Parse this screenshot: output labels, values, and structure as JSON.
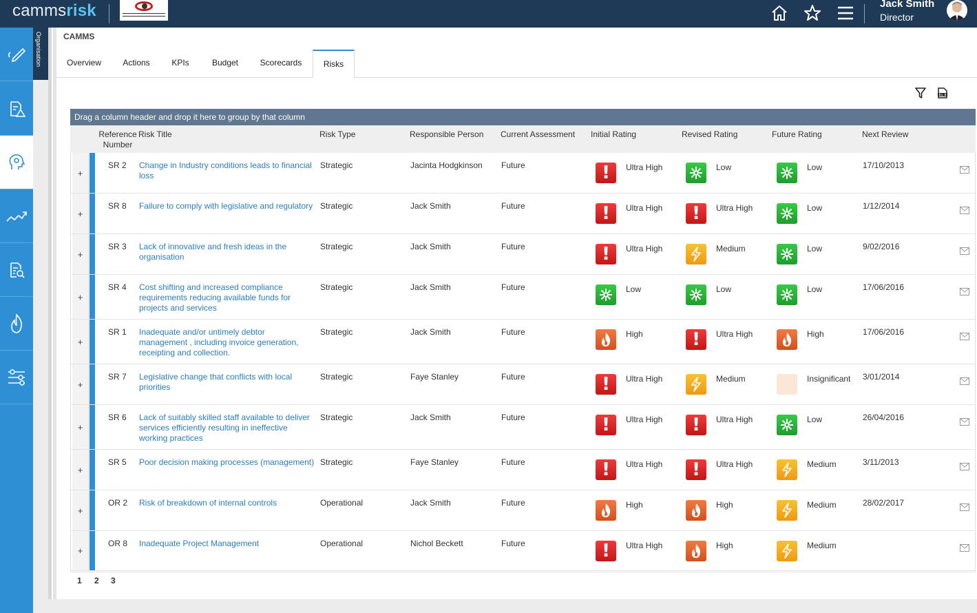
{
  "app": {
    "brand_part1": "camms",
    "brand_part2": "risk"
  },
  "user": {
    "name": "Jack Smith",
    "role": "Director"
  },
  "org_tab": "Organisation",
  "org_title": "CAMMS",
  "tabs": [
    "Overview",
    "Actions",
    "KPIs",
    "Budget",
    "Scorecards",
    "Risks"
  ],
  "active_tab": "Risks",
  "group_bar": "Drag a column header and drop it here to group by that column",
  "columns": {
    "ref_line1": "Reference",
    "ref_line2": "Number",
    "title": "Risk Title",
    "type": "Risk Type",
    "person": "Responsible Person",
    "assessment": "Current Assessment",
    "initial": "Initial Rating",
    "revised": "Revised Rating",
    "future": "Future Rating",
    "review": "Next Review"
  },
  "expand_symbol": "+",
  "rating_icons": {
    "Ultra High": "exclamation-icon",
    "High": "flame-icon",
    "Medium": "lightning-icon",
    "Low": "snowflake-icon",
    "Insignificant": "blank-icon"
  },
  "colors": {
    "accent": "#2f8fd5",
    "topbar": "#1e3a56",
    "link": "#2a7fc1",
    "group_bar": "#5f7790"
  },
  "rows": [
    {
      "ref": "SR 2",
      "title_lines": [
        "Change in Industry conditions leads to financial",
        "loss"
      ],
      "type": "Strategic",
      "person": "Jacinta Hodgkinson",
      "assessment": "Future",
      "initial": "Ultra High",
      "revised": "Low",
      "future": "Low",
      "review": "17/10/2013"
    },
    {
      "ref": "SR 8",
      "title_lines": [
        "Failure to comply with legislative and regulatory"
      ],
      "type": "Strategic",
      "person": "Jack Smith",
      "assessment": "Future",
      "initial": "Ultra High",
      "revised": "Ultra High",
      "future": "Low",
      "review": "1/12/2014"
    },
    {
      "ref": "SR 3",
      "title_lines": [
        "Lack of innovative and fresh ideas in the",
        "organisation"
      ],
      "type": "Strategic",
      "person": "Jack Smith",
      "assessment": "Future",
      "initial": "Ultra High",
      "revised": "Medium",
      "future": "Low",
      "review": "9/02/2016"
    },
    {
      "ref": "SR 4",
      "title_lines": [
        "Cost shifting and increased compliance",
        "requirements reducing available funds for",
        "projects and services"
      ],
      "type": "Strategic",
      "person": "Jack Smith",
      "assessment": "Future",
      "initial": "Low",
      "revised": "Low",
      "future": "Low",
      "review": "17/06/2016"
    },
    {
      "ref": "SR 1",
      "title_lines": [
        "Inadequate and/or untimely debtor",
        "management , including invoice generation,",
        "receipting and collection."
      ],
      "type": "Strategic",
      "person": "Jack Smith",
      "assessment": "Future",
      "initial": "High",
      "revised": "Ultra High",
      "future": "High",
      "review": "17/06/2016"
    },
    {
      "ref": "SR 7",
      "title_lines": [
        "Legislative change that conflicts with local",
        "priorities"
      ],
      "type": "Strategic",
      "person": "Faye Stanley",
      "assessment": "Future",
      "initial": "Ultra High",
      "revised": "Medium",
      "future": "Insignificant",
      "review": "3/01/2014"
    },
    {
      "ref": "SR 6",
      "title_lines": [
        "Lack of suitably skilled staff available to deliver",
        "services efficiently resulting in ineffective",
        "working practices"
      ],
      "type": "Strategic",
      "person": "Jack Smith",
      "assessment": "Future",
      "initial": "Ultra High",
      "revised": "Ultra High",
      "future": "Low",
      "review": "26/04/2016"
    },
    {
      "ref": "SR 5",
      "title_lines": [
        "Poor decision making processes (management)"
      ],
      "type": "Strategic",
      "person": "Faye Stanley",
      "assessment": "Future",
      "initial": "Ultra High",
      "revised": "Ultra High",
      "future": "Medium",
      "review": "3/11/2013"
    },
    {
      "ref": "OR 2",
      "title_lines": [
        "Risk of breakdown of internal controls"
      ],
      "type": "Operational",
      "person": "Jack Smith",
      "assessment": "Future",
      "initial": "High",
      "revised": "High",
      "future": "Medium",
      "review": "28/02/2017"
    },
    {
      "ref": "OR 8",
      "title_lines": [
        "Inadequate Project Management"
      ],
      "type": "Operational",
      "person": "Nichol Beckett",
      "assessment": "Future",
      "initial": "Ultra High",
      "revised": "High",
      "future": "Medium",
      "review": ""
    }
  ],
  "pages": [
    "1",
    "2",
    "3"
  ]
}
